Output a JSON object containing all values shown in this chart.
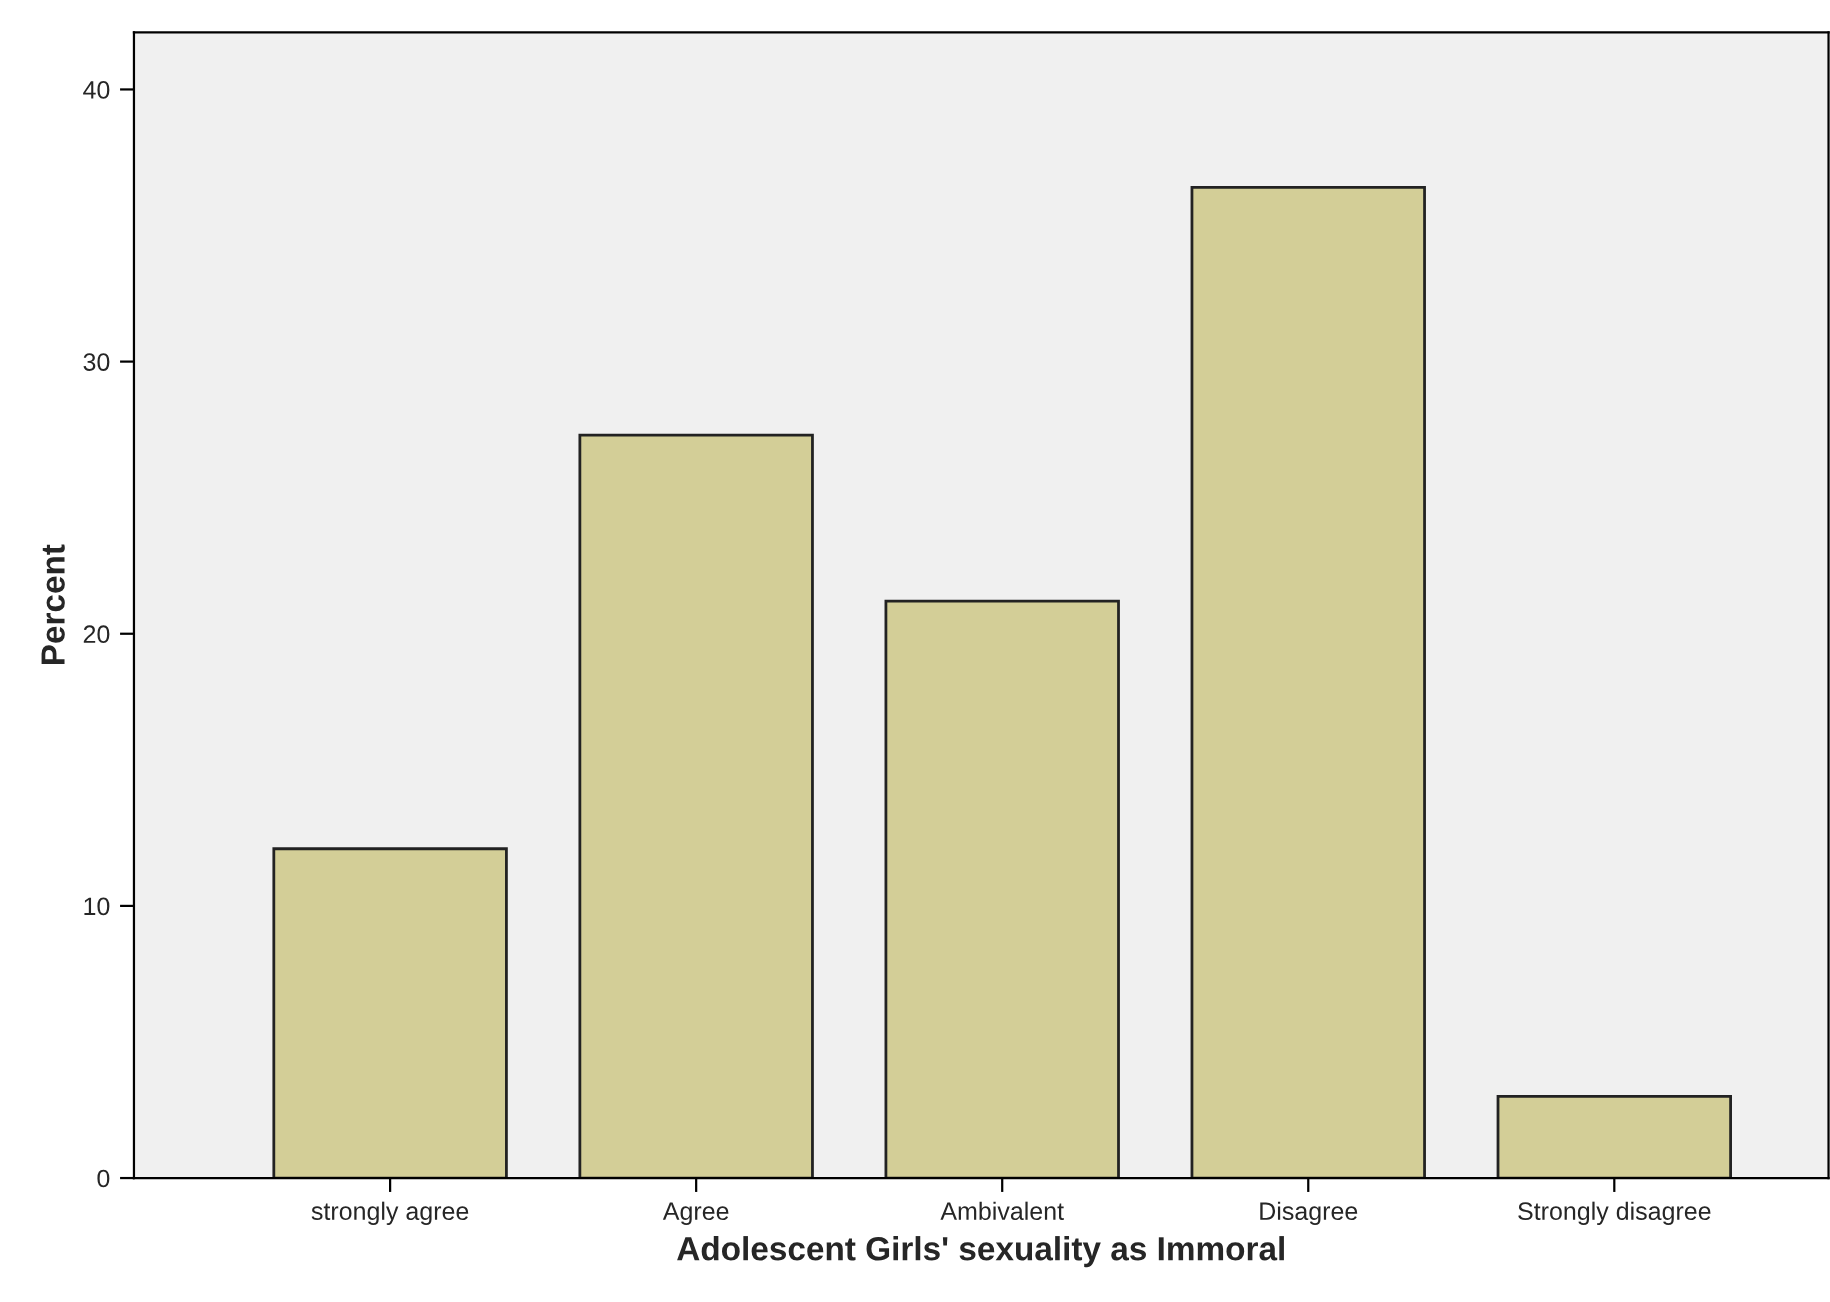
{
  "chart_data": {
    "type": "bar",
    "xlabel": "Adolescent Girls' sexuality as Immoral",
    "ylabel": "Percent",
    "categories": [
      "strongly agree",
      "Agree",
      "Ambivalent",
      "Disagree",
      "Strongly disagree"
    ],
    "values": [
      12.1,
      27.3,
      21.2,
      36.4,
      3.0
    ],
    "color": "#d3ce97",
    "ylim": [
      0,
      42.1
    ],
    "yticks": [
      0,
      10,
      20,
      30,
      40
    ],
    "grid": false,
    "legend": false
  }
}
